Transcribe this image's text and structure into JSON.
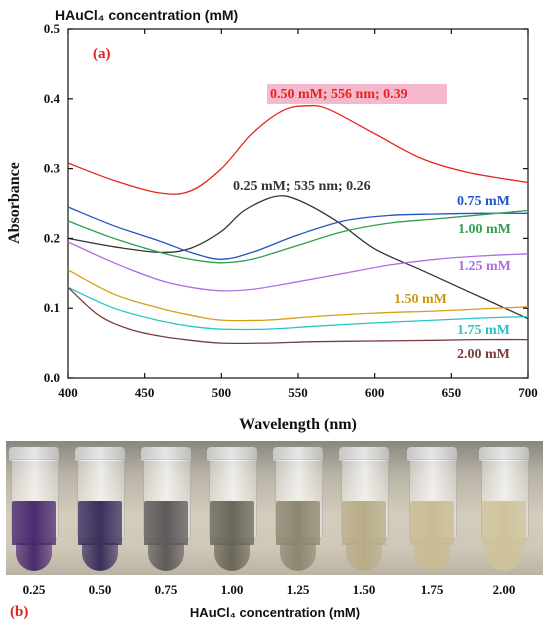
{
  "chart_data": {
    "type": "line",
    "title": "HAuCl₄ concentration (mM)",
    "panel_label": "(a)",
    "xlabel": "Wavelength (nm)",
    "ylabel": "Absorbance",
    "xlim": [
      400,
      700
    ],
    "ylim": [
      0.0,
      0.5
    ],
    "xticks": [
      "400",
      "450",
      "500",
      "550",
      "600",
      "650",
      "700"
    ],
    "yticks": [
      "0.0",
      "0.1",
      "0.2",
      "0.3",
      "0.4",
      "0.5"
    ],
    "grid": false,
    "series": [
      {
        "name": "0.50 mM; 556 nm; 0.39",
        "color": "#e8241c",
        "x": [
          400,
          430,
          460,
          480,
          500,
          520,
          540,
          556,
          570,
          600,
          630,
          660,
          700
        ],
        "y": [
          0.308,
          0.283,
          0.265,
          0.268,
          0.3,
          0.35,
          0.383,
          0.39,
          0.385,
          0.35,
          0.315,
          0.295,
          0.28
        ]
      },
      {
        "name": "0.25 mM; 535 nm; 0.26",
        "color": "#333333",
        "x": [
          400,
          430,
          460,
          480,
          500,
          515,
          535,
          550,
          575,
          600,
          630,
          660,
          700
        ],
        "y": [
          0.2,
          0.188,
          0.18,
          0.186,
          0.21,
          0.24,
          0.26,
          0.255,
          0.225,
          0.185,
          0.155,
          0.125,
          0.085
        ]
      },
      {
        "name": "0.75 mM",
        "color": "#2254c8",
        "x": [
          400,
          430,
          460,
          480,
          500,
          520,
          550,
          580,
          610,
          640,
          670,
          700
        ],
        "y": [
          0.245,
          0.218,
          0.196,
          0.18,
          0.17,
          0.18,
          0.205,
          0.225,
          0.233,
          0.235,
          0.236,
          0.236
        ]
      },
      {
        "name": "1.00 mM",
        "color": "#2ea050",
        "x": [
          400,
          430,
          460,
          480,
          500,
          520,
          550,
          580,
          610,
          640,
          670,
          700
        ],
        "y": [
          0.225,
          0.2,
          0.18,
          0.17,
          0.165,
          0.17,
          0.19,
          0.21,
          0.222,
          0.228,
          0.234,
          0.24
        ]
      },
      {
        "name": "1.25 mM",
        "color": "#b06ee0",
        "x": [
          400,
          430,
          460,
          480,
          500,
          520,
          550,
          580,
          610,
          640,
          670,
          700
        ],
        "y": [
          0.195,
          0.165,
          0.14,
          0.13,
          0.125,
          0.127,
          0.138,
          0.15,
          0.162,
          0.17,
          0.175,
          0.178
        ]
      },
      {
        "name": "1.50 mM",
        "color": "#d4a018",
        "x": [
          400,
          430,
          460,
          480,
          500,
          530,
          560,
          600,
          640,
          670,
          700
        ],
        "y": [
          0.155,
          0.12,
          0.1,
          0.09,
          0.083,
          0.083,
          0.088,
          0.093,
          0.096,
          0.099,
          0.102
        ]
      },
      {
        "name": "1.75 mM",
        "color": "#28c4c8",
        "x": [
          400,
          430,
          460,
          480,
          500,
          530,
          560,
          600,
          640,
          670,
          700
        ],
        "y": [
          0.13,
          0.1,
          0.082,
          0.074,
          0.07,
          0.07,
          0.074,
          0.079,
          0.083,
          0.086,
          0.088
        ]
      },
      {
        "name": "2.00 mM",
        "color": "#7a3c3c",
        "x": [
          400,
          420,
          440,
          460,
          480,
          500,
          530,
          560,
          600,
          640,
          670,
          700
        ],
        "y": [
          0.13,
          0.09,
          0.07,
          0.06,
          0.054,
          0.05,
          0.05,
          0.052,
          0.053,
          0.054,
          0.055,
          0.055
        ]
      }
    ],
    "annotations": [
      {
        "text": "0.50 mM; 556 nm; 0.39",
        "color": "#e8241c",
        "highlight": "#f6b8cc"
      },
      {
        "text": "0.25 mM; 535 nm; 0.26",
        "color": "#333333"
      },
      {
        "text": "0.75 mM",
        "color": "#2254c8"
      },
      {
        "text": "1.00 mM",
        "color": "#2ea050"
      },
      {
        "text": "1.25 mM",
        "color": "#b06ee0"
      },
      {
        "text": "1.50 mM",
        "color": "#c89a10"
      },
      {
        "text": "1.75 mM",
        "color": "#28c4c8"
      },
      {
        "text": "2.00 mM",
        "color": "#7a3c3c"
      }
    ]
  },
  "photo": {
    "panel_label": "(b)",
    "xlabel": "HAuCl₄ concentration (mM)",
    "tubes": [
      {
        "concentration": "0.25",
        "liquid_color": "#4a2a6e"
      },
      {
        "concentration": "0.50",
        "liquid_color": "#3b2f5c"
      },
      {
        "concentration": "0.75",
        "liquid_color": "#5e5a5a"
      },
      {
        "concentration": "1.00",
        "liquid_color": "#6a6658"
      },
      {
        "concentration": "1.25",
        "liquid_color": "#8c8670"
      },
      {
        "concentration": "1.50",
        "liquid_color": "#b8ac88"
      },
      {
        "concentration": "1.75",
        "liquid_color": "#c8ba92"
      },
      {
        "concentration": "2.00",
        "liquid_color": "#cfc29a"
      }
    ]
  }
}
